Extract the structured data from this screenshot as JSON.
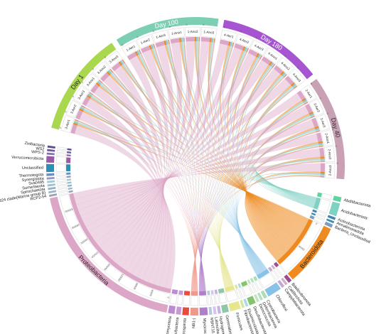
{
  "chart_data": {
    "type": "chord",
    "sample_groups": [
      {
        "name": "Day 100",
        "color": "#7ccfb4",
        "label_color": "#ffffff",
        "samples": [
          "1-Aer1",
          "1-Aer2",
          "1-Aer3",
          "1-Ano1",
          "1-Ano2",
          "1-Ano3"
        ]
      },
      {
        "name": "Day 180",
        "color": "#a654d2",
        "label_color": "#ffffff",
        "samples": [
          "4-Aer1",
          "4-Aer2",
          "4-Aer3",
          "4-Ano1",
          "4-Ano2",
          "4-Ano3"
        ]
      },
      {
        "name": "Day 40",
        "color": "#c9a1b5",
        "label_color": "#333333",
        "samples": [
          "2-Aer1",
          "2-Aer2",
          "2-Aer3",
          "2-Ano1",
          "2-Ano2",
          "2-Ano3"
        ]
      },
      {
        "name": "Day 1",
        "color": "#a9d84f",
        "label_color": "#222222",
        "samples": [
          "3-Aer1",
          "3-Aer2",
          "3-Aer3",
          "3-Ano1",
          "3-Ano2",
          "3-Ano3"
        ]
      }
    ],
    "phyla": [
      {
        "name": "Abditibacteriota",
        "color": "#5fd4a3",
        "value": 20
      },
      {
        "name": "Acidobacteriota",
        "color": "#7fd1c4",
        "value": 80
      },
      {
        "name": "Actinobacteriota",
        "color": "#4682b4",
        "value": 8
      },
      {
        "name": "Armatimonadota",
        "color": "#3f8fb0",
        "value": 6
      },
      {
        "name": "Bacteria_Unclassified",
        "color": "#7a9cc6",
        "value": 12
      },
      {
        "name": "Bacteroidota",
        "color": "#ee8a1f",
        "value": 700
      },
      {
        "name": "Bdellovibrionota",
        "color": "#9b4d8f",
        "value": 14
      },
      {
        "name": "Calditrichota",
        "color": "#d5b1c6",
        "value": 8
      },
      {
        "name": "Campylobacterota",
        "color": "#c7a7d6",
        "value": 10
      },
      {
        "name": "Chloroflexi",
        "color": "#88c3e7",
        "value": 90
      },
      {
        "name": "Cyanobacteria",
        "color": "#a9dfb3",
        "value": 12
      },
      {
        "name": "Deferribacterota",
        "color": "#b3e0c0",
        "value": 8
      },
      {
        "name": "Deinococcota",
        "color": "#c1e4bd",
        "value": 8
      },
      {
        "name": "Desulfobacterota",
        "color": "#84c56e",
        "value": 30
      },
      {
        "name": "Elusimicrobiota",
        "color": "#afd7e8",
        "value": 8
      },
      {
        "name": "Fibrobacterota",
        "color": "#d1e7a1",
        "value": 8
      },
      {
        "name": "Firmicutes",
        "color": "#e6e68e",
        "value": 60
      },
      {
        "name": "Gemmatimonadota",
        "color": "#8ec8a8",
        "value": 30
      },
      {
        "name": "Hydrogenedentes",
        "color": "#c4b3e0",
        "value": 10
      },
      {
        "name": "Latescibacterota",
        "color": "#d6c5e8",
        "value": 10
      },
      {
        "name": "MBNT15",
        "color": "#b8c9d9",
        "value": 10
      },
      {
        "name": "Myxococcota",
        "color": "#b07fc9",
        "value": 40
      },
      {
        "name": "NB1-j",
        "color": "#f0998a",
        "value": 40
      },
      {
        "name": "Nitrospirota",
        "color": "#e84b3a",
        "value": 30
      },
      {
        "name": "Patescibacteria",
        "color": "#c89ad5",
        "value": 20
      },
      {
        "name": "Planctomycetota",
        "color": "#bc8cd3",
        "value": 30
      },
      {
        "name": "Proteobacteria",
        "color": "#dca7c6",
        "value": 2800
      },
      {
        "name": "RCP2-54",
        "color": "#98a4b2",
        "value": 6
      },
      {
        "name": "SAR324_clade(Marine_group_B)",
        "color": "#a6b4c2",
        "value": 6
      },
      {
        "name": "Spirochaetota",
        "color": "#8fb4c7",
        "value": 6
      },
      {
        "name": "Sumerlaeota",
        "color": "#9dc0cf",
        "value": 6
      },
      {
        "name": "Sva0485",
        "color": "#a5c8d6",
        "value": 6
      },
      {
        "name": "Synergistota",
        "color": "#8d9bc4",
        "value": 6
      },
      {
        "name": "Thermotogota",
        "color": "#6e8fb7",
        "value": 8
      },
      {
        "name": "Unclassified",
        "color": "#2c8fb6",
        "value": 40
      },
      {
        "name": "Verrucomicrobiota",
        "color": "#9a5aa8",
        "value": 30
      },
      {
        "name": "WPS-2",
        "color": "#8a6fb0",
        "value": 6
      },
      {
        "name": "WS2",
        "color": "#6f5aa0",
        "value": 6
      },
      {
        "name": "Zixibacteria",
        "color": "#5a4a8f",
        "value": 6
      }
    ],
    "phylum_label_text": {
      "Abditibacteriota": "Abditibacteriota",
      "Acidobacteriota": "Acidobacteriota",
      "Actinobacteriota": "Actinobacteriota",
      "Armatimonadota": "Armatimonadota",
      "Bacteria_Unclassified": "Bacteria_Unclassified",
      "Bacteroidota": "Bacteroidota",
      "Bdellovibrionota": "Bdellovibrionota",
      "Calditrichota": "Calditrichota",
      "Campylobacterota": "Campylobacterota",
      "Chloroflexi": "Chloroflexi",
      "Cyanobacteria": "Cyanobacteria",
      "Deferribacterota": "Deferribacterota",
      "Deinococcota": "Deinococcota",
      "Desulfobacterota": "Desulfobacterota",
      "Elusimicrobiota": "Elusimicrobiota",
      "Fibrobacterota": "Fibrobacterota",
      "Firmicutes": "Firmicutes",
      "Gemmatimonadota": "Gemmatimonadota",
      "Hydrogenedentes": "Hydrogenedentes",
      "Latescibacterota": "Latescibacterota",
      "MBNT15": "MBNT15",
      "Myxococcota": "Myxococcota",
      "NB1-j": "NB1-j",
      "Nitrospirota": "Nitrospirota",
      "Patescibacteria": "Patescibacteria",
      "Planctomycetota": "Planctomycetota",
      "Proteobacteria": "Proteobacteria",
      "RCP2-54": "RCP2-54",
      "SAR324_clade(Marine_group_B)": "SAR324 clade(Marine group B)",
      "Spirochaetota": "Spirochaetota",
      "Sumerlaeota": "Sumerlaeota",
      "Sva0485": "Sva0485",
      "Synergistota": "Synergistota",
      "Thermotogota": "Thermotogota",
      "Unclassified": "Unclassified",
      "Verrucomicrobiota": "Verrucomicrobiota",
      "WPS-2": "WPS-2",
      "WS2": "WS2",
      "Zixibacteria": "Zixibacteria"
    },
    "ticks": {
      "proteobacteria": [
        "0",
        "40000",
        "80000",
        "120000",
        "160000",
        "200000",
        "240000",
        "280000",
        "320000"
      ],
      "bacteroidota": [
        "0",
        "40000"
      ],
      "sample": [
        "0",
        "10000"
      ]
    },
    "sample_composition_note_colors": [
      "#dca7c6",
      "#ee8a1f",
      "#88c3e7",
      "#7fd1c4",
      "#e6e68e",
      "#b07fc9",
      "#f0998a"
    ]
  }
}
